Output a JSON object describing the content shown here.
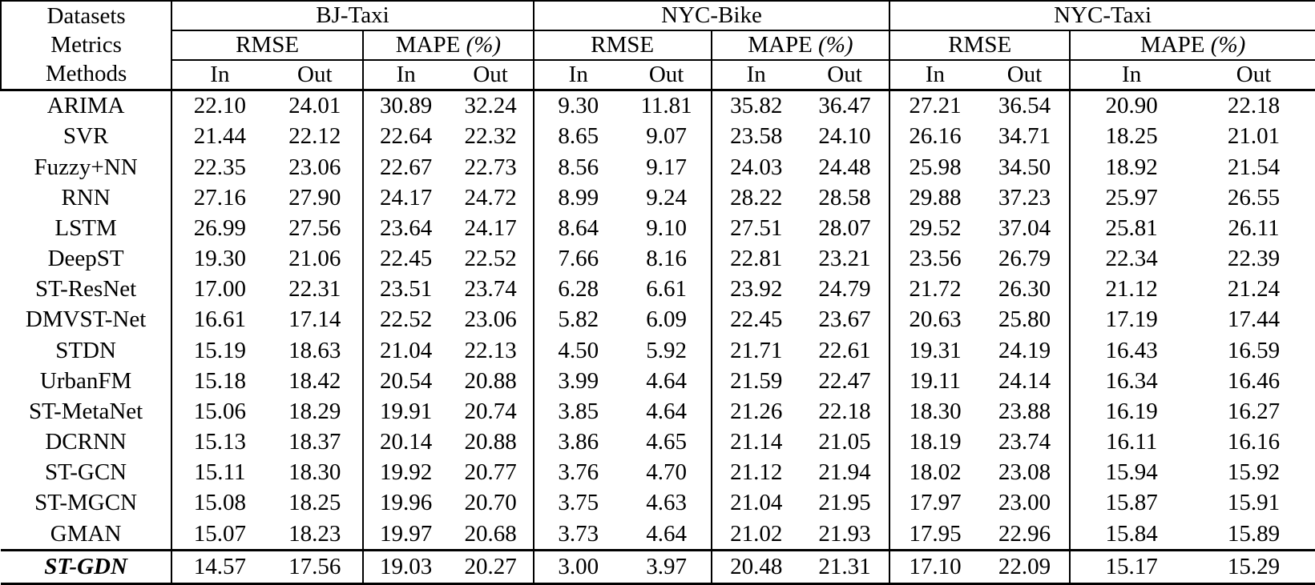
{
  "table": {
    "corner": [
      "Datasets",
      "Metrics",
      "Methods"
    ],
    "sub": {
      "in": "In",
      "out": "Out"
    },
    "datasets": [
      {
        "name": "BJ-Taxi"
      },
      {
        "name": "NYC-Bike"
      },
      {
        "name": "NYC-Taxi"
      }
    ],
    "metrics": [
      {
        "name": "RMSE",
        "suffix": ""
      },
      {
        "name": "MAPE",
        "suffix": " (%)"
      }
    ],
    "rows": [
      {
        "method": "ARIMA",
        "bold": false,
        "values": [
          "22.10",
          "24.01",
          "30.89",
          "32.24",
          "9.30",
          "11.81",
          "35.82",
          "36.47",
          "27.21",
          "36.54",
          "20.90",
          "22.18"
        ]
      },
      {
        "method": "SVR",
        "bold": false,
        "values": [
          "21.44",
          "22.12",
          "22.64",
          "22.32",
          "8.65",
          "9.07",
          "23.58",
          "24.10",
          "26.16",
          "34.71",
          "18.25",
          "21.01"
        ]
      },
      {
        "method": "Fuzzy+NN",
        "bold": false,
        "values": [
          "22.35",
          "23.06",
          "22.67",
          "22.73",
          "8.56",
          "9.17",
          "24.03",
          "24.48",
          "25.98",
          "34.50",
          "18.92",
          "21.54"
        ]
      },
      {
        "method": "RNN",
        "bold": false,
        "values": [
          "27.16",
          "27.90",
          "24.17",
          "24.72",
          "8.99",
          "9.24",
          "28.22",
          "28.58",
          "29.88",
          "37.23",
          "25.97",
          "26.55"
        ]
      },
      {
        "method": "LSTM",
        "bold": false,
        "values": [
          "26.99",
          "27.56",
          "23.64",
          "24.17",
          "8.64",
          "9.10",
          "27.51",
          "28.07",
          "29.52",
          "37.04",
          "25.81",
          "26.11"
        ]
      },
      {
        "method": "DeepST",
        "bold": false,
        "values": [
          "19.30",
          "21.06",
          "22.45",
          "22.52",
          "7.66",
          "8.16",
          "22.81",
          "23.21",
          "23.56",
          "26.79",
          "22.34",
          "22.39"
        ]
      },
      {
        "method": "ST-ResNet",
        "bold": false,
        "values": [
          "17.00",
          "22.31",
          "23.51",
          "23.74",
          "6.28",
          "6.61",
          "23.92",
          "24.79",
          "21.72",
          "26.30",
          "21.12",
          "21.24"
        ]
      },
      {
        "method": "DMVST-Net",
        "bold": false,
        "values": [
          "16.61",
          "17.14",
          "22.52",
          "23.06",
          "5.82",
          "6.09",
          "22.45",
          "23.67",
          "20.63",
          "25.80",
          "17.19",
          "17.44"
        ]
      },
      {
        "method": "STDN",
        "bold": false,
        "values": [
          "15.19",
          "18.63",
          "21.04",
          "22.13",
          "4.50",
          "5.92",
          "21.71",
          "22.61",
          "19.31",
          "24.19",
          "16.43",
          "16.59"
        ]
      },
      {
        "method": "UrbanFM",
        "bold": false,
        "values": [
          "15.18",
          "18.42",
          "20.54",
          "20.88",
          "3.99",
          "4.64",
          "21.59",
          "22.47",
          "19.11",
          "24.14",
          "16.34",
          "16.46"
        ]
      },
      {
        "method": "ST-MetaNet",
        "bold": false,
        "values": [
          "15.06",
          "18.29",
          "19.91",
          "20.74",
          "3.85",
          "4.64",
          "21.26",
          "22.18",
          "18.30",
          "23.88",
          "16.19",
          "16.27"
        ]
      },
      {
        "method": "DCRNN",
        "bold": false,
        "values": [
          "15.13",
          "18.37",
          "20.14",
          "20.88",
          "3.86",
          "4.65",
          "21.14",
          "21.05",
          "18.19",
          "23.74",
          "16.11",
          "16.16"
        ]
      },
      {
        "method": "ST-GCN",
        "bold": false,
        "values": [
          "15.11",
          "18.30",
          "19.92",
          "20.77",
          "3.76",
          "4.70",
          "21.12",
          "21.94",
          "18.02",
          "23.08",
          "15.94",
          "15.92"
        ]
      },
      {
        "method": "ST-MGCN",
        "bold": false,
        "values": [
          "15.08",
          "18.25",
          "19.96",
          "20.70",
          "3.75",
          "4.63",
          "21.04",
          "21.95",
          "17.97",
          "23.00",
          "15.87",
          "15.91"
        ]
      },
      {
        "method": "GMAN",
        "bold": false,
        "values": [
          "15.07",
          "18.23",
          "19.97",
          "20.68",
          "3.73",
          "4.64",
          "21.02",
          "21.93",
          "17.95",
          "22.96",
          "15.84",
          "15.89"
        ]
      },
      {
        "method": "ST-GDN",
        "bold": true,
        "values": [
          "14.57",
          "17.56",
          "19.03",
          "20.27",
          "3.00",
          "3.97",
          "20.48",
          "21.31",
          "17.10",
          "22.09",
          "15.17",
          "15.29"
        ]
      }
    ]
  }
}
